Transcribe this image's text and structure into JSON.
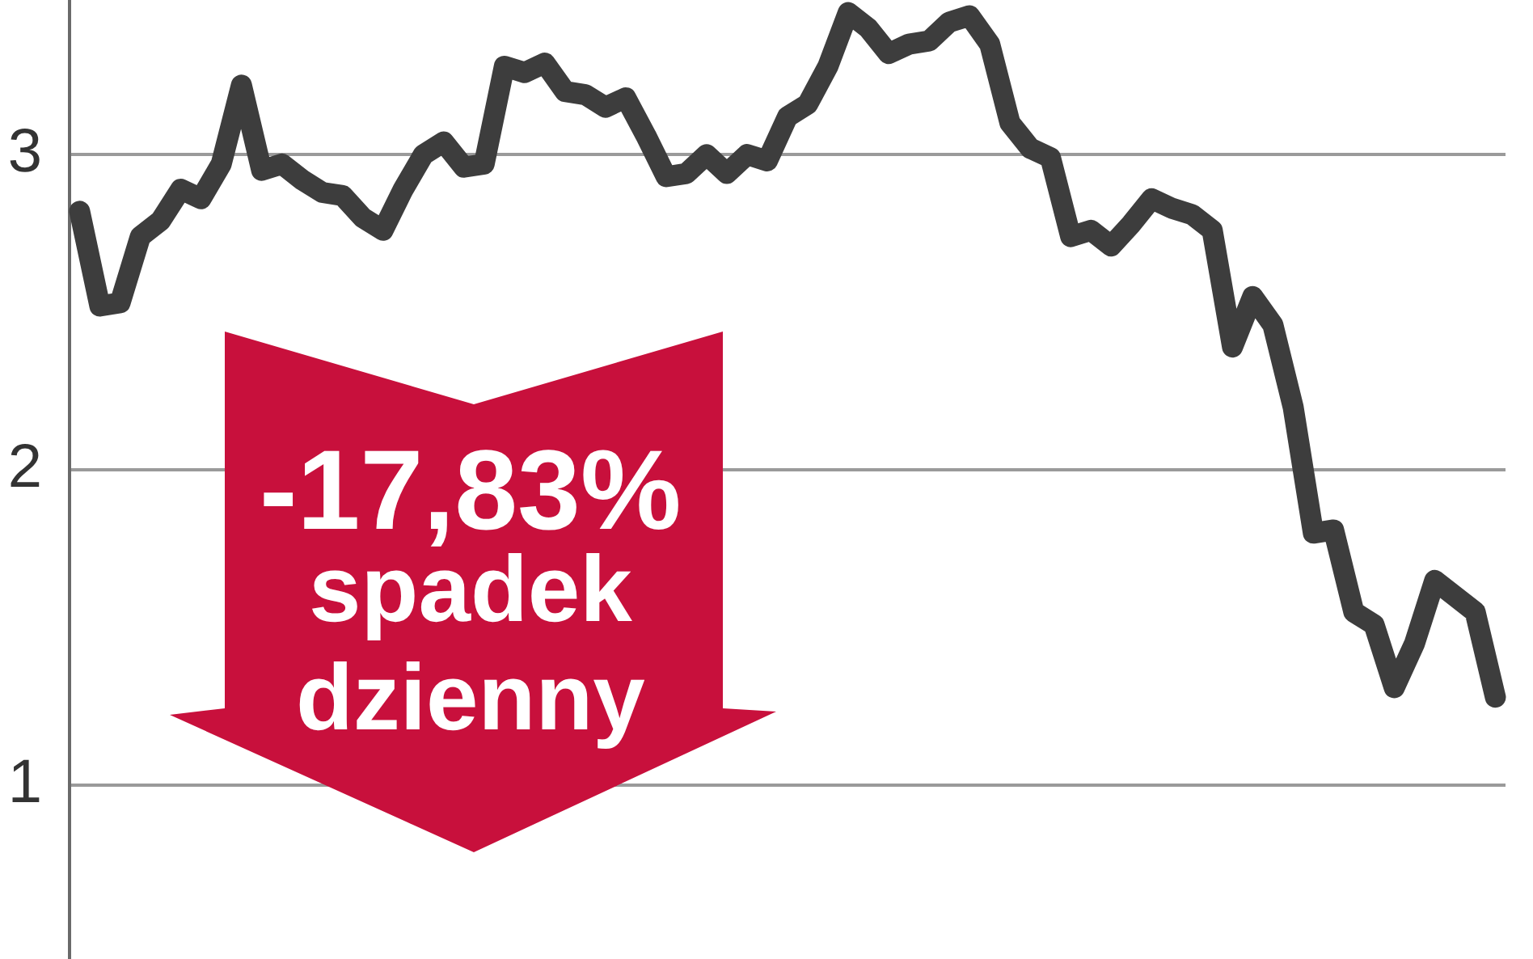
{
  "chart_data": {
    "type": "line",
    "categories": [
      null,
      null,
      null,
      null,
      null,
      null,
      null,
      null,
      null,
      null,
      null,
      null,
      null,
      null,
      null,
      null,
      null,
      null,
      null,
      null,
      null,
      null,
      null,
      null,
      null,
      null,
      null,
      null,
      null,
      null,
      null,
      null,
      null,
      null,
      null,
      null,
      null,
      null,
      null,
      null,
      null,
      null,
      null,
      null,
      null,
      null,
      null,
      null,
      null,
      null,
      null,
      null,
      null,
      null,
      null,
      null,
      null,
      null,
      null,
      null,
      null,
      null,
      null,
      null,
      null,
      null,
      null,
      null,
      null,
      null,
      null
    ],
    "series": [
      {
        "color": "#3d3d3d",
        "values": [
          2.82,
          2.52,
          2.53,
          2.74,
          2.79,
          2.89,
          2.86,
          2.97,
          3.22,
          2.95,
          2.97,
          2.92,
          2.88,
          2.87,
          2.8,
          2.76,
          2.89,
          3.0,
          3.04,
          2.96,
          2.97,
          3.28,
          3.26,
          3.29,
          3.2,
          3.19,
          3.15,
          3.18,
          3.06,
          2.93,
          2.94,
          3.0,
          2.94,
          3.0,
          2.98,
          3.12,
          3.16,
          3.28,
          3.45,
          3.4,
          3.32,
          3.35,
          3.36,
          3.42,
          3.44,
          3.35,
          3.1,
          3.02,
          2.99,
          2.74,
          2.76,
          2.71,
          2.78,
          2.86,
          2.83,
          2.81,
          2.76,
          2.39,
          2.55,
          2.46,
          2.2,
          1.8,
          1.81,
          1.55,
          1.51,
          1.31,
          1.45,
          1.65,
          1.6,
          1.55,
          1.28
        ]
      }
    ],
    "ylim": [
      0.45,
      3.49
    ],
    "yticks": [
      1,
      2,
      3
    ],
    "grid": "y",
    "tick_labels": "y",
    "annotations": [
      "-17,83%",
      "spadek dzienny"
    ]
  }
}
